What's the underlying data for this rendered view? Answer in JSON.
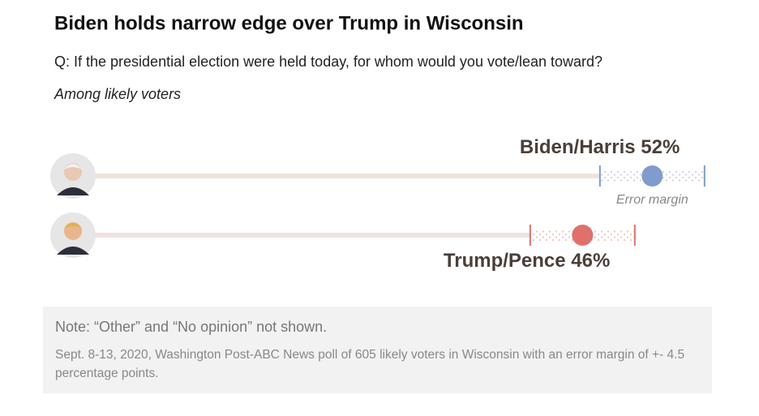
{
  "chart_data": {
    "type": "dot",
    "title": "Biden holds narrow edge over Trump in Wisconsin",
    "subtitle": "Q: If the presidential election were held today, for whom would you vote/lean toward?",
    "caption": "Among likely voters",
    "error_label": "Error margin",
    "note": "Note: “Other” and “No opinion” not shown.",
    "source": "Sept. 8-13, 2020, Washington Post-ABC News poll of 605 likely voters in Wisconsin with an error margin of +- 4.5 percentage points.",
    "xlim": [
      0,
      60
    ],
    "series": [
      {
        "name": "Biden/Harris",
        "color": "#7f9ccc",
        "values": [
          52
        ],
        "value_labels": [
          "52%"
        ],
        "errors": [
          4.5
        ]
      },
      {
        "name": "Trump/Pence",
        "color": "#e0706b",
        "values": [
          46
        ],
        "value_labels": [
          "46%"
        ],
        "errors": [
          4.5
        ]
      }
    ]
  }
}
